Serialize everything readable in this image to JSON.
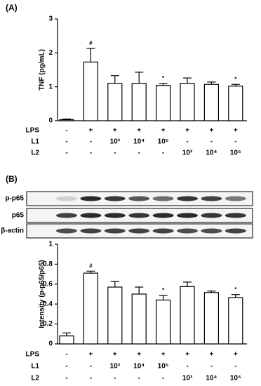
{
  "chart_data": [
    {
      "type": "bar",
      "panel_label": "(A)",
      "y_label": "TNF (pg/mL)",
      "values": [
        0.03,
        1.73,
        1.1,
        1.1,
        1.04,
        1.1,
        1.07,
        1.02
      ],
      "errors": [
        0.02,
        0.4,
        0.23,
        0.33,
        0.06,
        0.16,
        0.07,
        0.05
      ],
      "annotations": [
        {
          "bar": 1,
          "text": "#"
        },
        {
          "bar": 4,
          "text": "*"
        },
        {
          "bar": 7,
          "text": "*"
        }
      ],
      "ylim": [
        0,
        3
      ],
      "yticks": [
        0,
        1,
        2,
        3
      ],
      "color": "#ffffff",
      "treatments": [
        {
          "name": "LPS",
          "values": [
            "-",
            "+",
            "+",
            "+",
            "+",
            "+",
            "+",
            "+"
          ]
        },
        {
          "name": "L1",
          "values": [
            "-",
            "-",
            "10³",
            "10⁴",
            "10⁵",
            "-",
            "-",
            "-"
          ]
        },
        {
          "name": "L2",
          "values": [
            "-",
            "-",
            "-",
            "-",
            "-",
            "10³",
            "10⁴",
            "10⁵"
          ]
        }
      ]
    },
    {
      "type": "bar",
      "panel_label": "(B)",
      "y_label": "Intensity (p-p65/p65)",
      "values": [
        0.08,
        0.71,
        0.57,
        0.5,
        0.44,
        0.575,
        0.515,
        0.465
      ],
      "errors": [
        0.03,
        0.02,
        0.055,
        0.07,
        0.045,
        0.045,
        0.015,
        0.03
      ],
      "annotations": [
        {
          "bar": 1,
          "text": "#"
        },
        {
          "bar": 4,
          "text": "*"
        },
        {
          "bar": 7,
          "text": "*"
        }
      ],
      "ylim": [
        0,
        1
      ],
      "yticks": [
        0,
        0.2,
        0.4,
        0.6,
        0.8,
        1
      ],
      "color": "#ffffff",
      "blot_rows": [
        "p-p65",
        "p65",
        "β-actin"
      ],
      "treatments": [
        {
          "name": "LPS",
          "values": [
            "-",
            "+",
            "+",
            "+",
            "+",
            "+",
            "+",
            "+"
          ]
        },
        {
          "name": "L1",
          "values": [
            "-",
            "-",
            "10³",
            "10⁴",
            "10⁵",
            "-",
            "-",
            "-"
          ]
        },
        {
          "name": "L2",
          "values": [
            "-",
            "-",
            "-",
            "-",
            "-",
            "10³",
            "10⁴",
            "10⁵"
          ]
        }
      ]
    }
  ]
}
